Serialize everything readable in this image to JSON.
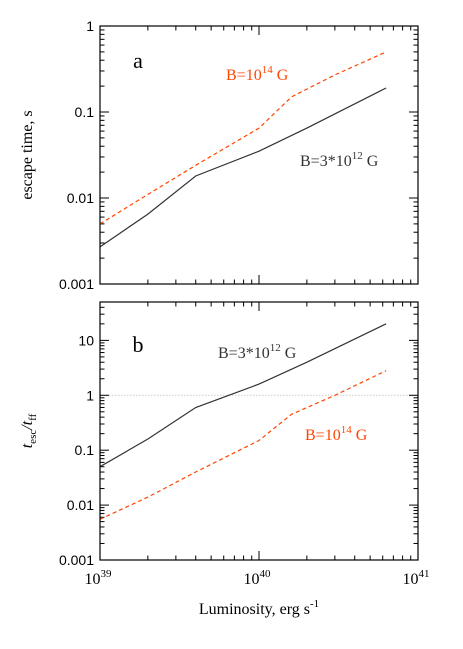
{
  "chart_data": [
    {
      "type": "line",
      "panel_label": "a",
      "ylabel": "escape time, s",
      "xscale": "log",
      "yscale": "log",
      "xlim": [
        1e+39,
        1e+41
      ],
      "ylim": [
        0.001,
        1
      ],
      "y_ticks": [
        {
          "value": 0.001,
          "label": "0.001"
        },
        {
          "value": 0.01,
          "label": "0.01"
        },
        {
          "value": 0.1,
          "label": "0.1"
        },
        {
          "value": 1,
          "label": "1"
        }
      ],
      "series": [
        {
          "name": "B=3*10^12 G",
          "label_text": "B=3*10",
          "label_sup": "12",
          "label_suffix": " G",
          "color": "#333333",
          "style": "solid",
          "x": [
            1e+39,
            2e+39,
            4e+39,
            1e+40,
            2e+40,
            6.3e+40
          ],
          "y": [
            0.0027,
            0.0065,
            0.018,
            0.035,
            0.065,
            0.19
          ]
        },
        {
          "name": "B=10^14 G",
          "label_text": "B=10",
          "label_sup": "14",
          "label_suffix": " G",
          "color": "#ff4500",
          "style": "dashed",
          "x": [
            1e+39,
            2e+39,
            4e+39,
            1e+40,
            1.6e+40,
            3e+40,
            6.3e+40
          ],
          "y": [
            0.005,
            0.011,
            0.024,
            0.065,
            0.15,
            0.27,
            0.5
          ]
        }
      ]
    },
    {
      "type": "line",
      "panel_label": "b",
      "ylabel_main": "t",
      "ylabel_sub1": "esc",
      "ylabel_sep": "/t",
      "ylabel_sub2": "ff",
      "xlabel_main": "Luminosity, erg s",
      "xlabel_sup": "-1",
      "xscale": "log",
      "yscale": "log",
      "xlim": [
        1e+39,
        1e+41
      ],
      "ylim": [
        0.001,
        50
      ],
      "reference_line": 1,
      "x_ticks": [
        {
          "value": 1e+39,
          "base": "10",
          "exp": "39"
        },
        {
          "value": 1e+40,
          "base": "10",
          "exp": "40"
        },
        {
          "value": 1e+41,
          "base": "10",
          "exp": "41"
        }
      ],
      "y_ticks": [
        {
          "value": 0.001,
          "label": "0.001"
        },
        {
          "value": 0.01,
          "label": "0.01"
        },
        {
          "value": 0.1,
          "label": "0.1"
        },
        {
          "value": 1,
          "label": "1"
        },
        {
          "value": 10,
          "label": "10"
        }
      ],
      "series": [
        {
          "name": "B=3*10^12 G",
          "label_text": "B=3*10",
          "label_sup": "12",
          "label_suffix": " G",
          "color": "#333333",
          "style": "solid",
          "x": [
            1e+39,
            2e+39,
            4e+39,
            1e+40,
            2e+40,
            6.3e+40
          ],
          "y": [
            0.05,
            0.16,
            0.6,
            1.6,
            4.0,
            20
          ]
        },
        {
          "name": "B=10^14 G",
          "label_text": "B=10",
          "label_sup": "14",
          "label_suffix": " G",
          "color": "#ff4500",
          "style": "dashed",
          "x": [
            1e+39,
            2e+39,
            4e+39,
            1e+40,
            1.6e+40,
            3e+40,
            6.3e+40
          ],
          "y": [
            0.0055,
            0.014,
            0.04,
            0.15,
            0.45,
            1.0,
            2.8
          ]
        }
      ]
    }
  ]
}
